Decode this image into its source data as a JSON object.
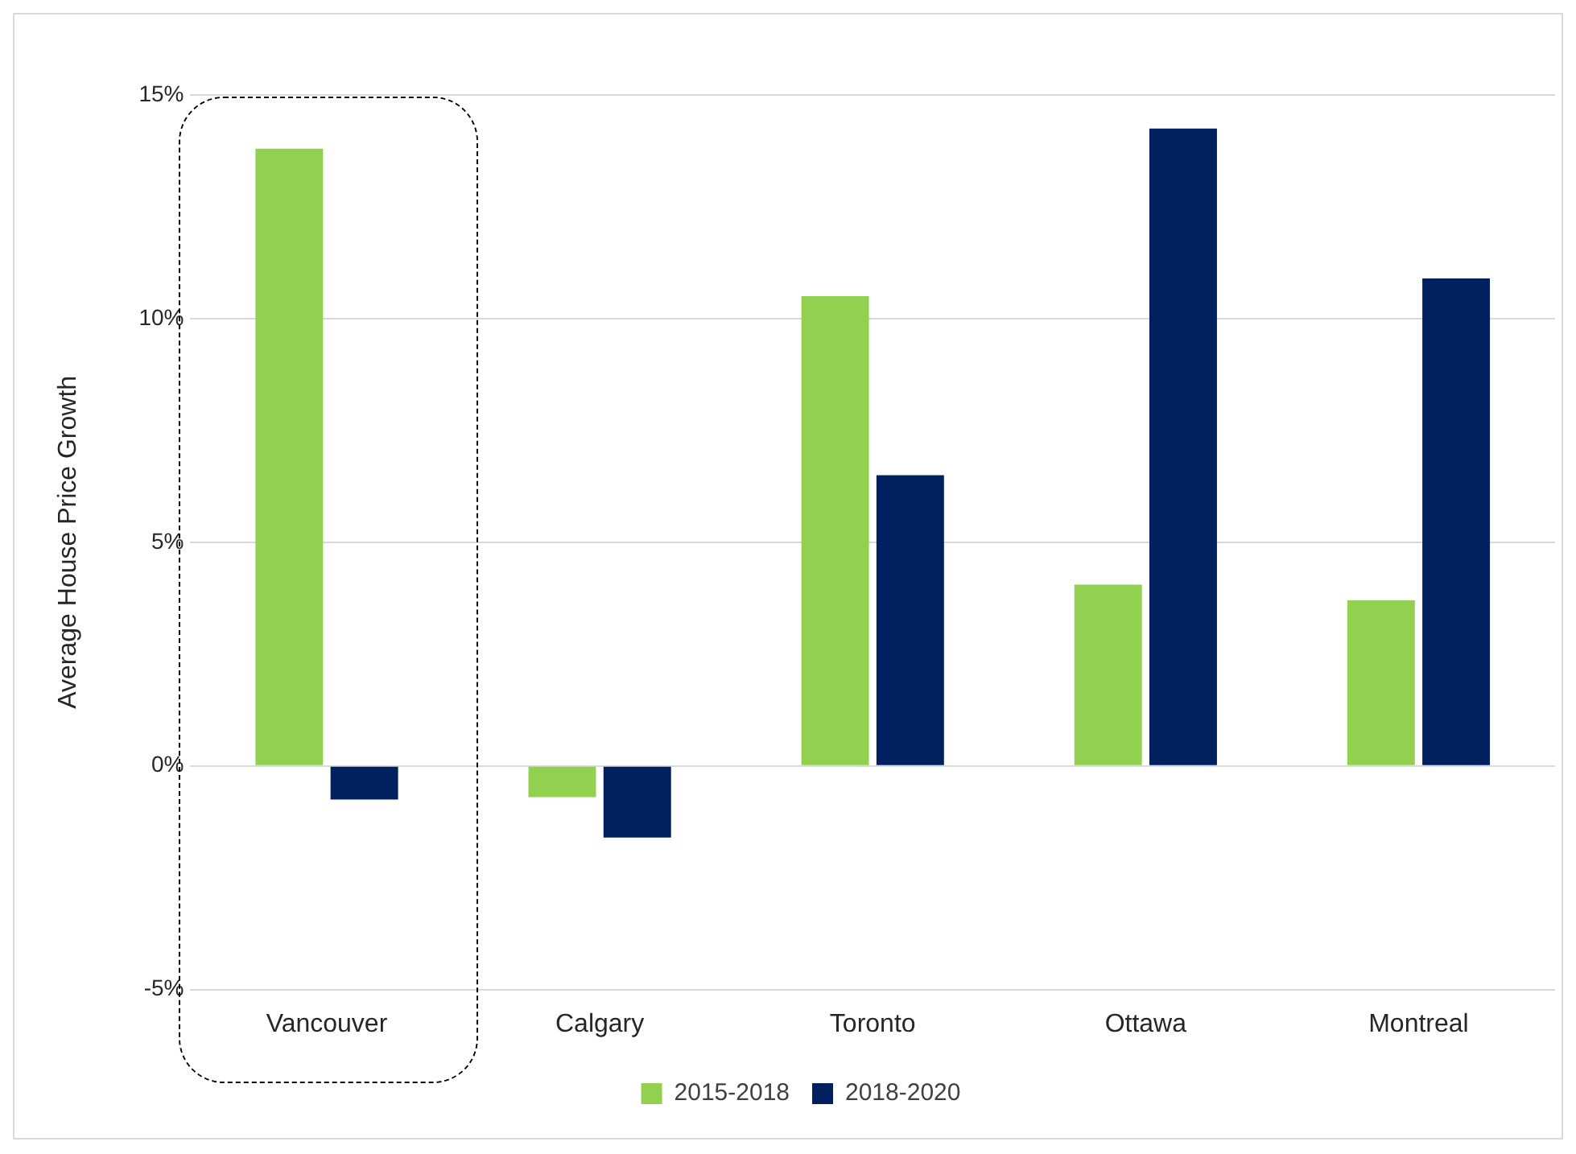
{
  "chart_data": {
    "type": "bar",
    "ylabel": "Average House Price Growth",
    "categories": [
      "Vancouver",
      "Calgary",
      "Toronto",
      "Ottawa",
      "Montreal"
    ],
    "series": [
      {
        "name": "2015-2018",
        "color": "#92d050",
        "values": [
          13.8,
          -0.7,
          10.5,
          4.05,
          3.7
        ]
      },
      {
        "name": "2018-2020",
        "color": "#002060",
        "values": [
          -0.75,
          -1.6,
          6.5,
          14.25,
          10.9
        ]
      }
    ],
    "ylim": [
      -5,
      15
    ],
    "yticks": [
      {
        "value": -5,
        "label": "-5%"
      },
      {
        "value": 0,
        "label": "0%"
      },
      {
        "value": 5,
        "label": "5%"
      },
      {
        "value": 10,
        "label": "10%"
      },
      {
        "value": 15,
        "label": "15%"
      }
    ],
    "grid": "y",
    "legend": "bottom"
  }
}
